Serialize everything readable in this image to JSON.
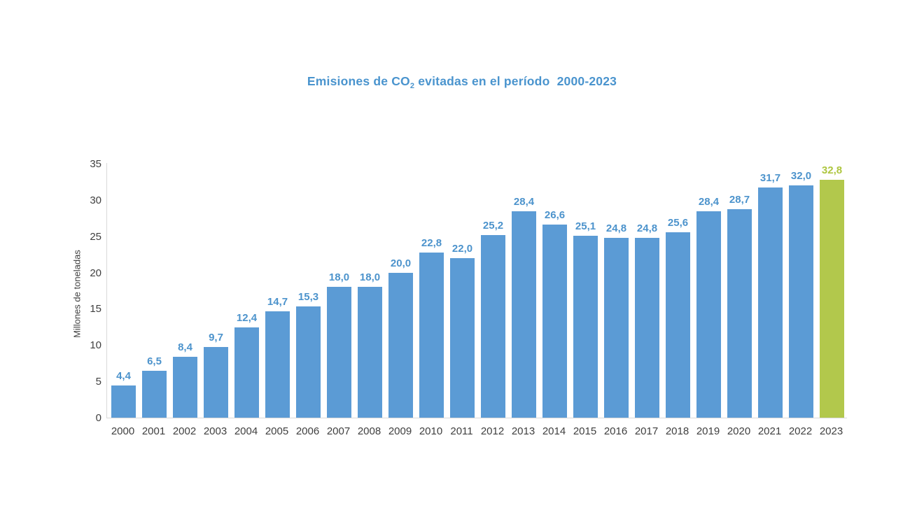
{
  "title": {
    "prefix": "Emisiones de CO",
    "subscript": "2",
    "suffix": " evitadas en el período  2000-2023"
  },
  "colors": {
    "bar": "#5b9bd5",
    "bar_highlight": "#b2c84c",
    "label": "#4c93cc",
    "label_highlight": "#aec63f",
    "title": "#4a94ce",
    "axis_text": "#3f3f3f",
    "axis_line": "#d9d9d9"
  },
  "chart_data": {
    "type": "bar",
    "title": "Emisiones de CO2 evitadas en el período 2000-2023",
    "ylabel": "Millones de toneladas",
    "xlabel": "",
    "ylim": [
      0,
      35
    ],
    "yticks": [
      0,
      5,
      10,
      15,
      20,
      25,
      30,
      35
    ],
    "grid": false,
    "legend": "none",
    "categories": [
      "2000",
      "2001",
      "2002",
      "2003",
      "2004",
      "2005",
      "2006",
      "2007",
      "2008",
      "2009",
      "2010",
      "2011",
      "2012",
      "2013",
      "2014",
      "2015",
      "2016",
      "2017",
      "2018",
      "2019",
      "2020",
      "2021",
      "2022",
      "2023"
    ],
    "values": [
      4.4,
      6.5,
      8.4,
      9.7,
      12.4,
      14.7,
      15.3,
      18.0,
      18.0,
      20.0,
      22.8,
      22.0,
      25.2,
      28.4,
      26.6,
      25.1,
      24.8,
      24.8,
      25.6,
      28.4,
      28.7,
      31.7,
      32.0,
      32.8
    ],
    "value_labels": [
      "4,4",
      "6,5",
      "8,4",
      "9,7",
      "12,4",
      "14,7",
      "15,3",
      "18,0",
      "18,0",
      "20,0",
      "22,8",
      "22,0",
      "25,2",
      "28,4",
      "26,6",
      "25,1",
      "24,8",
      "24,8",
      "25,6",
      "28,4",
      "28,7",
      "31,7",
      "32,0",
      "32,8"
    ],
    "highlight_index": 23
  }
}
